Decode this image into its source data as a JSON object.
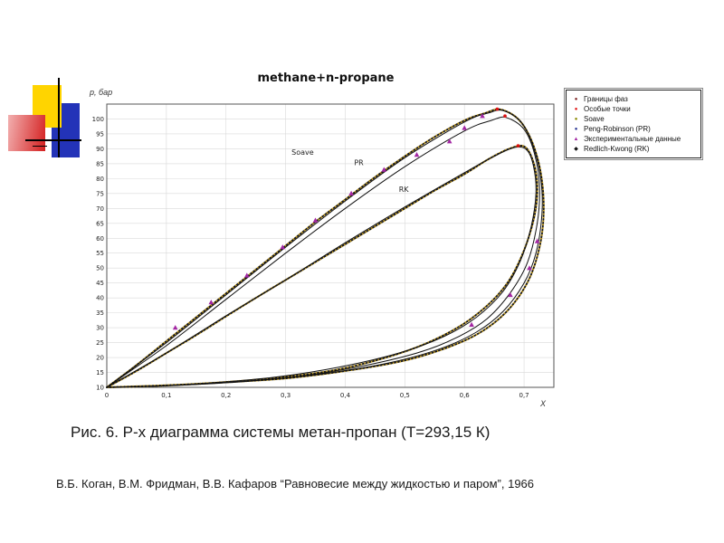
{
  "slide": {
    "caption": "Рис. 6. P-x диаграмма системы метан-пропан (Т=293,15 К)",
    "reference": "В.Б. Коган, В.М. Фридман, В.В. Кафаров “Равновесие между жидкостью и паром”, 1966"
  },
  "chart_data": {
    "type": "line",
    "title": "methane+n-propane",
    "xlabel": "X",
    "ylabel": "p, бар",
    "xlim": [
      0,
      0.75
    ],
    "ylim": [
      10,
      105
    ],
    "x_ticks": [
      0,
      0.1,
      0.2,
      0.3,
      0.4,
      0.5,
      0.6,
      0.7
    ],
    "y_ticks": [
      10,
      15,
      20,
      25,
      30,
      35,
      40,
      45,
      50,
      55,
      60,
      65,
      70,
      75,
      80,
      85,
      90,
      95,
      100
    ],
    "grid": true,
    "legend": {
      "position": "outside-right-top",
      "items": [
        {
          "label": "Границы фаз",
          "marker": "dot",
          "color": "#7b1f1f"
        },
        {
          "label": "Особые точки",
          "marker": "dot",
          "color": "#e01010"
        },
        {
          "label": "Soave",
          "marker": "dot",
          "color": "#8a8a00"
        },
        {
          "label": "Peng-Robinson (PR)",
          "marker": "dot",
          "color": "#283593"
        },
        {
          "label": "Экспериментальные данные",
          "marker": "triangle",
          "color": "#a327a3"
        },
        {
          "label": "Redlich-Kwong (RK)",
          "marker": "diamond",
          "color": "#111111"
        }
      ]
    },
    "series": [
      {
        "name": "Границы фаз (внешний контур)",
        "type": "line",
        "style": "dotted",
        "color": "#1a1a1a",
        "accent": "#c9a227",
        "points": [
          [
            0,
            10
          ],
          [
            0.05,
            17.5
          ],
          [
            0.1,
            25.5
          ],
          [
            0.15,
            33.5
          ],
          [
            0.2,
            41.5
          ],
          [
            0.25,
            49.5
          ],
          [
            0.3,
            57.5
          ],
          [
            0.35,
            65.5
          ],
          [
            0.4,
            73
          ],
          [
            0.45,
            80.5
          ],
          [
            0.5,
            87.5
          ],
          [
            0.55,
            94
          ],
          [
            0.6,
            99.5
          ],
          [
            0.635,
            102
          ],
          [
            0.66,
            103.2
          ],
          [
            0.69,
            100
          ],
          [
            0.712,
            93
          ],
          [
            0.727,
            83
          ],
          [
            0.733,
            71
          ],
          [
            0.728,
            59
          ],
          [
            0.71,
            47
          ],
          [
            0.678,
            37
          ],
          [
            0.635,
            29.5
          ],
          [
            0.58,
            24
          ],
          [
            0.5,
            19
          ],
          [
            0.4,
            15.5
          ],
          [
            0.3,
            13
          ],
          [
            0.2,
            11.7
          ],
          [
            0.1,
            10.7
          ],
          [
            0,
            10
          ]
        ]
      },
      {
        "name": "Границы фаз (внутренний контур)",
        "type": "line",
        "style": "dotted",
        "color": "#1a1a1a",
        "accent": "#c9a227",
        "points": [
          [
            0,
            10
          ],
          [
            0.05,
            15.5
          ],
          [
            0.1,
            21.5
          ],
          [
            0.15,
            27.5
          ],
          [
            0.2,
            33.8
          ],
          [
            0.25,
            40
          ],
          [
            0.3,
            46
          ],
          [
            0.35,
            52
          ],
          [
            0.4,
            58
          ],
          [
            0.45,
            64
          ],
          [
            0.5,
            70
          ],
          [
            0.55,
            76
          ],
          [
            0.6,
            81.5
          ],
          [
            0.64,
            86.5
          ],
          [
            0.675,
            90
          ],
          [
            0.7,
            90.8
          ],
          [
            0.715,
            86
          ],
          [
            0.722,
            78
          ],
          [
            0.718,
            68
          ],
          [
            0.7,
            56
          ],
          [
            0.672,
            45
          ],
          [
            0.63,
            36
          ],
          [
            0.575,
            28.5
          ],
          [
            0.5,
            22
          ],
          [
            0.4,
            16.5
          ],
          [
            0.3,
            13.5
          ],
          [
            0.2,
            11.8
          ],
          [
            0.1,
            10.6
          ],
          [
            0,
            10
          ]
        ]
      },
      {
        "name": "Soave",
        "type": "line",
        "style": "solid",
        "color": "#111111",
        "points": [
          [
            0,
            10
          ],
          [
            0.1,
            25
          ],
          [
            0.2,
            41
          ],
          [
            0.3,
            57
          ],
          [
            0.4,
            72.5
          ],
          [
            0.5,
            87
          ],
          [
            0.6,
            99
          ],
          [
            0.64,
            102
          ],
          [
            0.665,
            102.8
          ],
          [
            0.695,
            99
          ],
          [
            0.715,
            91
          ],
          [
            0.728,
            80
          ],
          [
            0.73,
            68
          ],
          [
            0.72,
            55
          ],
          [
            0.7,
            45
          ],
          [
            0.665,
            35.5
          ],
          [
            0.62,
            28.5
          ],
          [
            0.56,
            23
          ],
          [
            0.48,
            18.5
          ],
          [
            0.38,
            15
          ],
          [
            0.28,
            12.8
          ],
          [
            0.18,
            11.4
          ],
          [
            0.08,
            10.4
          ],
          [
            0,
            10
          ]
        ]
      },
      {
        "name": "Peng-Robinson (PR)",
        "type": "line",
        "style": "solid",
        "color": "#111111",
        "points": [
          [
            0,
            10
          ],
          [
            0.1,
            24
          ],
          [
            0.2,
            39.5
          ],
          [
            0.3,
            55
          ],
          [
            0.4,
            70
          ],
          [
            0.5,
            84
          ],
          [
            0.6,
            96
          ],
          [
            0.645,
            99.5
          ],
          [
            0.67,
            100.5
          ],
          [
            0.7,
            96.5
          ],
          [
            0.718,
            88
          ],
          [
            0.726,
            77
          ],
          [
            0.722,
            65
          ],
          [
            0.706,
            52
          ],
          [
            0.678,
            42
          ],
          [
            0.638,
            33
          ],
          [
            0.585,
            26.5
          ],
          [
            0.52,
            21.5
          ],
          [
            0.42,
            16.8
          ],
          [
            0.32,
            13.6
          ],
          [
            0.22,
            11.8
          ],
          [
            0.12,
            10.7
          ],
          [
            0,
            10
          ]
        ]
      },
      {
        "name": "Redlich-Kwong (RK)",
        "type": "line",
        "style": "solid",
        "color": "#111111",
        "points": [
          [
            0,
            10
          ],
          [
            0.1,
            21.5
          ],
          [
            0.2,
            34
          ],
          [
            0.3,
            46
          ],
          [
            0.4,
            58.5
          ],
          [
            0.5,
            70.5
          ],
          [
            0.6,
            82
          ],
          [
            0.65,
            87.5
          ],
          [
            0.685,
            90.5
          ],
          [
            0.705,
            89.5
          ],
          [
            0.716,
            84
          ],
          [
            0.72,
            75
          ],
          [
            0.712,
            64
          ],
          [
            0.694,
            52.5
          ],
          [
            0.664,
            42
          ],
          [
            0.62,
            33.5
          ],
          [
            0.565,
            27
          ],
          [
            0.49,
            21.5
          ],
          [
            0.39,
            16.8
          ],
          [
            0.29,
            13.6
          ],
          [
            0.19,
            11.7
          ],
          [
            0.09,
            10.5
          ],
          [
            0,
            10
          ]
        ]
      },
      {
        "name": "Экспериментальные данные",
        "type": "scatter",
        "marker": "triangle",
        "color": "#a327a3",
        "points": [
          [
            0.115,
            30
          ],
          [
            0.175,
            38.5
          ],
          [
            0.235,
            47.5
          ],
          [
            0.295,
            57
          ],
          [
            0.35,
            66
          ],
          [
            0.41,
            75
          ],
          [
            0.465,
            83
          ],
          [
            0.52,
            88
          ],
          [
            0.575,
            92.5
          ],
          [
            0.6,
            97
          ],
          [
            0.63,
            101
          ],
          [
            0.612,
            31
          ],
          [
            0.677,
            41
          ],
          [
            0.709,
            50
          ],
          [
            0.722,
            59
          ]
        ]
      },
      {
        "name": "Особые точки",
        "type": "scatter",
        "marker": "dot",
        "color": "#dd1111",
        "points": [
          [
            0.655,
            103.3
          ],
          [
            0.668,
            101
          ],
          [
            0.69,
            91
          ]
        ]
      }
    ],
    "curve_labels": [
      {
        "text": "Soave",
        "x": 0.31,
        "y": 88
      },
      {
        "text": "PR",
        "x": 0.415,
        "y": 84.5
      },
      {
        "text": "RK",
        "x": 0.49,
        "y": 75.5
      }
    ]
  }
}
